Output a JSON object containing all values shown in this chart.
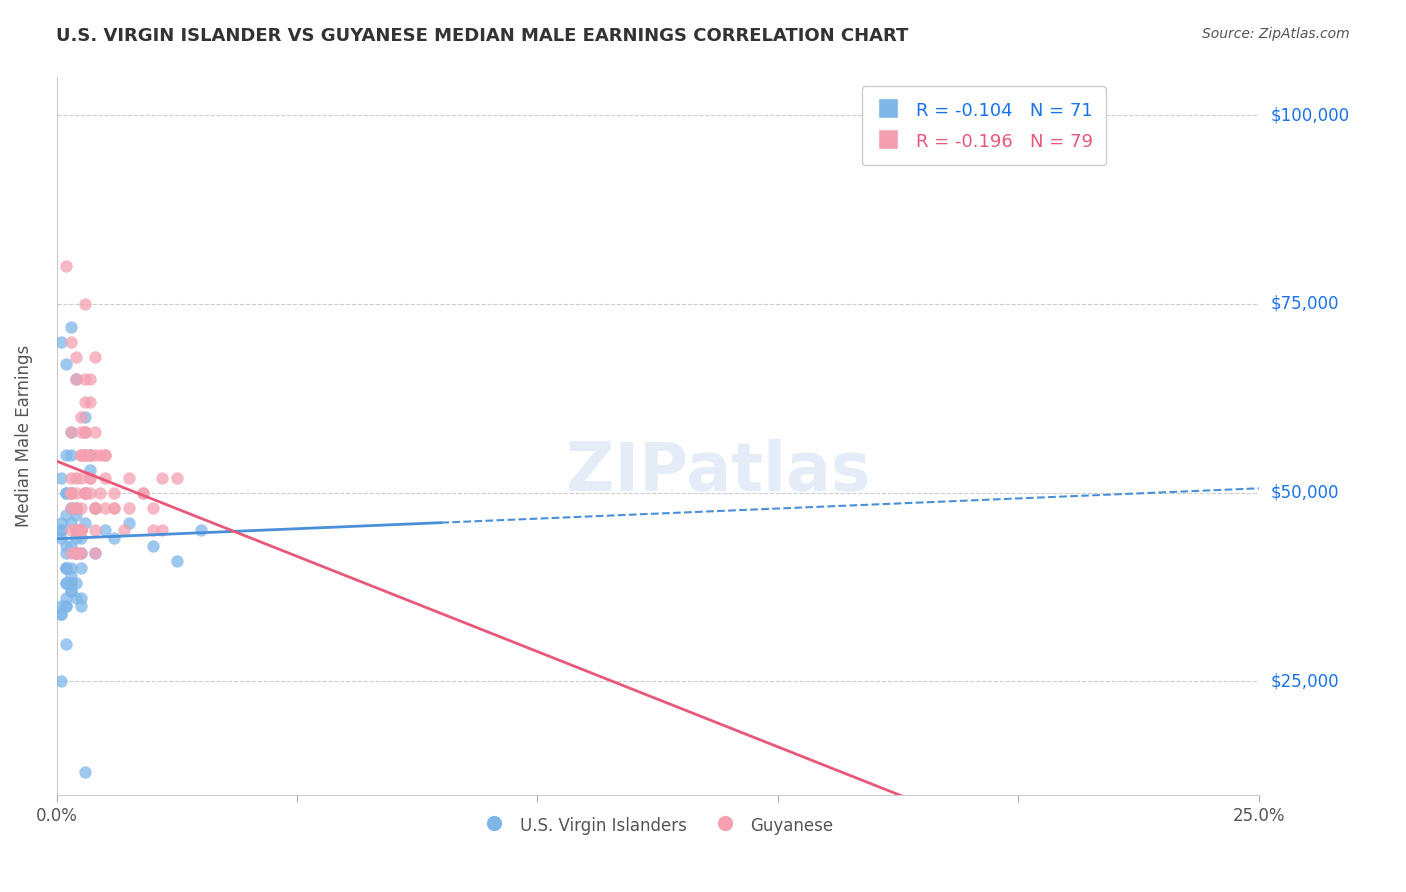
{
  "title": "U.S. VIRGIN ISLANDER VS GUYANESE MEDIAN MALE EARNINGS CORRELATION CHART",
  "source": "Source: ZipAtlas.com",
  "xlabel_bottom": "",
  "ylabel": "Median Male Earnings",
  "xlim": [
    0.0,
    0.25
  ],
  "ylim": [
    10000,
    105000
  ],
  "yticks": [
    25000,
    50000,
    75000,
    100000
  ],
  "xticks": [
    0.0,
    0.05,
    0.1,
    0.15,
    0.2,
    0.25
  ],
  "xtick_labels": [
    "0.0%",
    "",
    "",
    "",
    "",
    "25.0%"
  ],
  "series1_name": "U.S. Virgin Islanders",
  "series1_color": "#7EB6E8",
  "series1_R": -0.104,
  "series1_N": 71,
  "series2_name": "Guyanese",
  "series2_color": "#F4A0B0",
  "series2_R": -0.196,
  "series2_N": 79,
  "watermark": "ZIPatlas",
  "background_color": "#ffffff",
  "grid_color": "#cccccc",
  "title_color": "#333333",
  "axis_label_color": "#1a73e8",
  "series1_x": [
    0.002,
    0.003,
    0.001,
    0.004,
    0.002,
    0.003,
    0.001,
    0.002,
    0.004,
    0.005,
    0.001,
    0.002,
    0.003,
    0.004,
    0.002,
    0.001,
    0.003,
    0.002,
    0.004,
    0.003,
    0.005,
    0.002,
    0.001,
    0.003,
    0.004,
    0.006,
    0.002,
    0.003,
    0.001,
    0.004,
    0.007,
    0.003,
    0.002,
    0.005,
    0.004,
    0.003,
    0.002,
    0.006,
    0.001,
    0.004,
    0.008,
    0.003,
    0.005,
    0.002,
    0.004,
    0.003,
    0.006,
    0.002,
    0.007,
    0.004,
    0.01,
    0.012,
    0.008,
    0.015,
    0.02,
    0.025,
    0.03,
    0.002,
    0.001,
    0.003,
    0.004,
    0.002,
    0.001,
    0.003,
    0.002,
    0.004,
    0.001,
    0.005,
    0.002,
    0.003,
    0.006
  ],
  "series1_y": [
    55000,
    72000,
    45000,
    48000,
    40000,
    38000,
    52000,
    35000,
    42000,
    36000,
    44000,
    50000,
    58000,
    65000,
    47000,
    70000,
    55000,
    43000,
    48000,
    38000,
    40000,
    35000,
    46000,
    50000,
    42000,
    60000,
    67000,
    48000,
    35000,
    45000,
    55000,
    40000,
    38000,
    44000,
    36000,
    46000,
    42000,
    50000,
    34000,
    45000,
    48000,
    37000,
    42000,
    50000,
    44000,
    38000,
    46000,
    40000,
    53000,
    47000,
    45000,
    44000,
    42000,
    46000,
    43000,
    41000,
    45000,
    30000,
    25000,
    37000,
    38000,
    36000,
    34000,
    39000,
    40000,
    42000,
    45000,
    35000,
    38000,
    43000,
    13000
  ],
  "series2_x": [
    0.004,
    0.002,
    0.006,
    0.003,
    0.005,
    0.004,
    0.007,
    0.003,
    0.006,
    0.005,
    0.008,
    0.004,
    0.006,
    0.003,
    0.005,
    0.007,
    0.004,
    0.006,
    0.008,
    0.005,
    0.003,
    0.006,
    0.004,
    0.007,
    0.005,
    0.009,
    0.004,
    0.006,
    0.003,
    0.008,
    0.005,
    0.007,
    0.004,
    0.006,
    0.003,
    0.01,
    0.005,
    0.008,
    0.006,
    0.004,
    0.012,
    0.007,
    0.005,
    0.009,
    0.006,
    0.008,
    0.004,
    0.01,
    0.007,
    0.005,
    0.015,
    0.012,
    0.01,
    0.018,
    0.02,
    0.025,
    0.022,
    0.003,
    0.005,
    0.006,
    0.004,
    0.008,
    0.006,
    0.003,
    0.005,
    0.004,
    0.007,
    0.003,
    0.006,
    0.008,
    0.01,
    0.012,
    0.015,
    0.02,
    0.022,
    0.018,
    0.014,
    0.008,
    0.005
  ],
  "series2_y": [
    52000,
    80000,
    75000,
    58000,
    55000,
    48000,
    62000,
    50000,
    65000,
    45000,
    55000,
    42000,
    58000,
    70000,
    52000,
    65000,
    45000,
    55000,
    48000,
    60000,
    50000,
    58000,
    68000,
    52000,
    45000,
    55000,
    48000,
    62000,
    52000,
    45000,
    58000,
    50000,
    42000,
    55000,
    48000,
    52000,
    45000,
    58000,
    50000,
    42000,
    48000,
    55000,
    45000,
    50000,
    58000,
    42000,
    50000,
    48000,
    55000,
    45000,
    52000,
    48000,
    55000,
    50000,
    48000,
    52000,
    45000,
    50000,
    55000,
    50000,
    45000,
    68000,
    55000,
    42000,
    48000,
    65000,
    52000,
    45000,
    50000,
    48000,
    55000,
    50000,
    48000,
    45000,
    52000,
    50000,
    45000,
    48000,
    42000
  ]
}
